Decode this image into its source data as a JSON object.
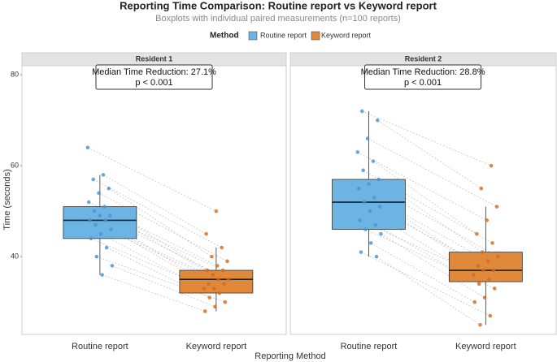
{
  "chart_data": {
    "type": "boxplot",
    "title": "Reporting Time Comparison: Routine report vs Keyword report",
    "subtitle": "Boxplots with individual paired measurements (n=100 reports)",
    "legend_title": "Method",
    "x_label": "Reporting Method",
    "y_label": "Time (seconds)",
    "categories": [
      "Routine report",
      "Keyword report"
    ],
    "colors": [
      "#6cb4e4",
      "#e0893a"
    ],
    "point_colors": [
      "#4a92cc",
      "#d2691e"
    ],
    "ylim": [
      22.9,
      82
    ],
    "yticks": [
      40,
      60,
      80
    ],
    "panels": [
      {
        "name": "Resident 1",
        "annotation": [
          "Median Time Reduction: 27.1%",
          "p < 0.001"
        ],
        "boxes": [
          {
            "whisker_low": 36,
            "q1": 44,
            "median": 48,
            "q3": 51,
            "whisker_high": 58
          },
          {
            "whisker_low": 28,
            "q1": 32,
            "median": 35,
            "q3": 37,
            "whisker_high": 42
          }
        ],
        "points": [
          [
            64,
            58,
            57,
            55,
            54,
            52,
            51,
            50,
            49,
            49,
            48,
            48,
            47,
            46,
            45,
            44,
            42,
            40,
            38,
            36
          ],
          [
            50,
            45,
            42,
            40,
            39,
            38,
            37,
            37,
            36,
            35,
            35,
            34,
            34,
            33,
            33,
            32,
            31,
            30,
            29,
            28
          ]
        ]
      },
      {
        "name": "Resident 2",
        "annotation": [
          "Median Time Reduction: 28.8%",
          "p < 0.001"
        ],
        "boxes": [
          {
            "whisker_low": 40,
            "q1": 46,
            "median": 52,
            "q3": 57,
            "whisker_high": 72
          },
          {
            "whisker_low": 25,
            "q1": 34.5,
            "median": 37,
            "q3": 41,
            "whisker_high": 51
          }
        ],
        "points": [
          [
            72,
            70,
            66,
            63,
            61,
            59,
            57,
            56,
            55,
            53,
            52,
            51,
            50,
            48,
            47,
            46,
            45,
            43,
            41,
            40
          ],
          [
            60,
            55,
            51,
            48,
            45,
            43,
            41,
            40,
            39,
            38,
            37,
            37,
            36,
            35,
            34,
            33,
            31,
            30,
            27,
            25
          ]
        ]
      }
    ]
  }
}
